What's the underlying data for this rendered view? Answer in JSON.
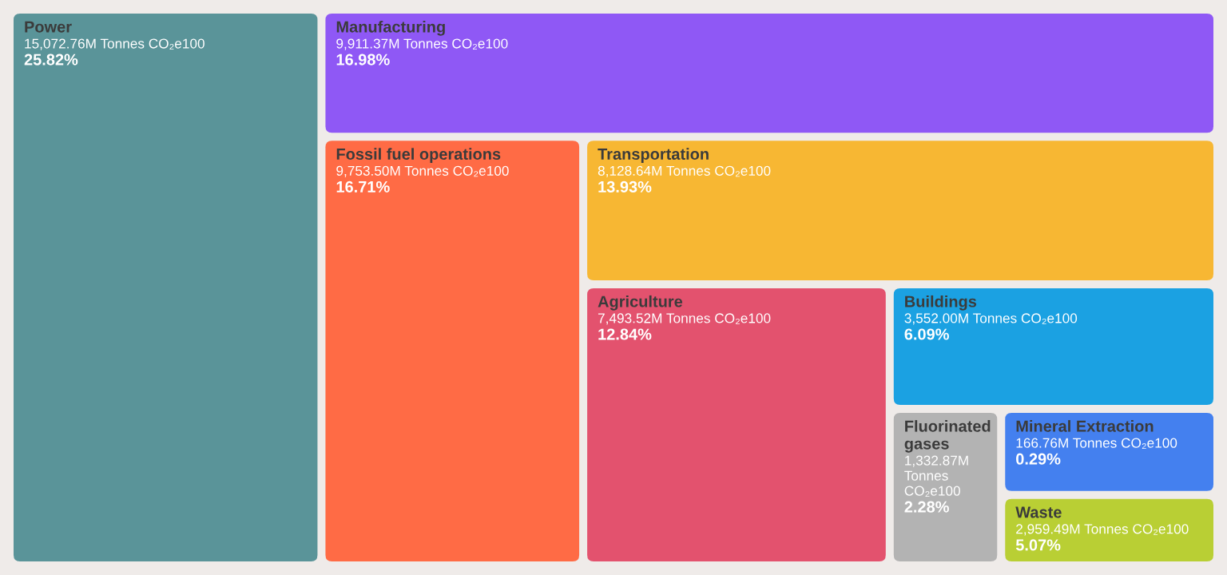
{
  "chart_data": {
    "type": "other",
    "categories": [
      "Power",
      "Manufacturing",
      "Fossil fuel operations",
      "Transportation",
      "Agriculture",
      "Buildings",
      "Fluorinated gases",
      "Mineral Extraction",
      "Waste"
    ],
    "series": [
      {
        "values": [
          15072760000,
          9911370000,
          9753500000,
          8128640000,
          7493520000,
          3552000000,
          1332870000,
          166760000,
          2959490000
        ],
        "value_labels": [
          "15,072.76M Tonnes CO₂e100",
          "9,911.37M Tonnes CO₂e100",
          "9,753.50M Tonnes CO₂e100",
          "8,128.64M Tonnes CO₂e100",
          "7,493.52M Tonnes CO₂e100",
          "3,552.00M Tonnes CO₂e100",
          "1,332.87M Tonnes CO₂e100",
          "166.76M Tonnes CO₂e100",
          "2,959.49M Tonnes CO₂e100"
        ],
        "colors": [
          "#5a9499",
          "#8f58f5",
          "#ff6b45",
          "#f7b733",
          "#e3526e",
          "#1ba1e2",
          "#b3b3b3",
          "#4480ef",
          "#b9cf34"
        ]
      },
      {
        "colors": [
          "#ffffff",
          "#ffffff",
          "#ffffff",
          "#ffffff",
          "#ffffff",
          "#ffffff",
          "#ffffff",
          "#ffffff",
          "#ffffff"
        ],
        "values": [
          25.82,
          16.98,
          16.71,
          13.93,
          12.84,
          6.09,
          2.28,
          0.29,
          5.07
        ],
        "value_labels": [
          "25.82%",
          "16.98%",
          "16.71%",
          "13.93%",
          "12.84%",
          "6.09%",
          "2.28%",
          "0.29%",
          "5.07%"
        ]
      }
    ]
  }
}
